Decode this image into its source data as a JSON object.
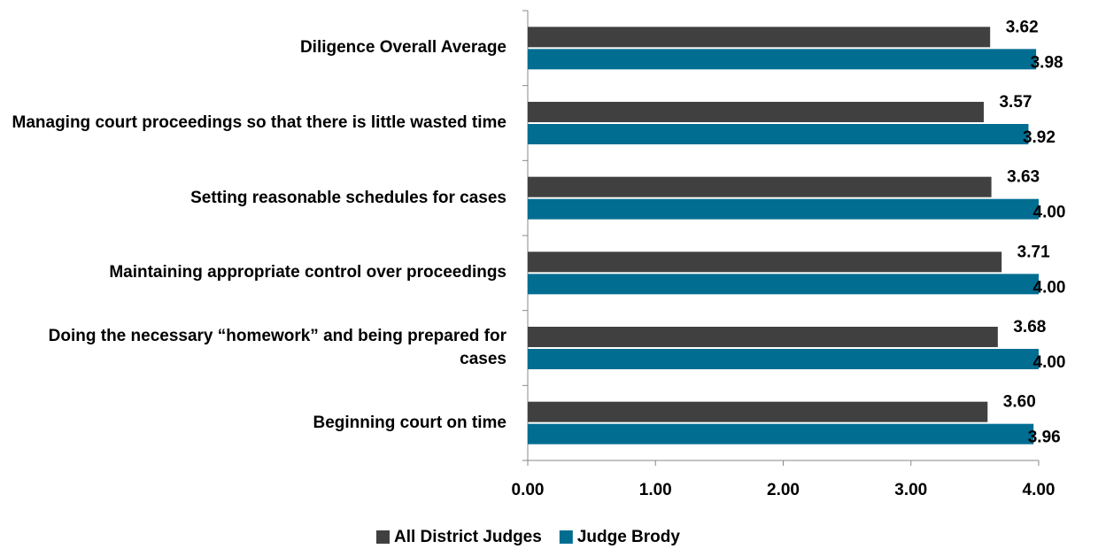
{
  "chart_data": {
    "type": "barh",
    "categories": [
      "Diligence Overall Average",
      "Managing court proceedings so that there is little wasted time",
      "Setting reasonable schedules for cases",
      "Maintaining appropriate control over proceedings",
      "Doing the necessary “homework” and being prepared for cases",
      "Beginning court on time"
    ],
    "series": [
      {
        "name": "All District Judges",
        "color": "#404040",
        "values": [
          3.62,
          3.57,
          3.63,
          3.71,
          3.68,
          3.6
        ],
        "value_labels": [
          "3.62",
          "3.57",
          "3.63",
          "3.71",
          "3.68",
          "3.60"
        ]
      },
      {
        "name": "Judge Brody",
        "color": "#006d91",
        "values": [
          3.98,
          3.92,
          4.0,
          4.0,
          4.0,
          3.96
        ],
        "value_labels": [
          "3.98",
          "3.92",
          "4.00",
          "4.00",
          "4.00",
          "3.96"
        ]
      }
    ],
    "xlim": [
      0,
      4
    ],
    "xticks": [
      {
        "value": 0,
        "label": "0.00"
      },
      {
        "value": 1,
        "label": "1.00"
      },
      {
        "value": 2,
        "label": "2.00"
      },
      {
        "value": 3,
        "label": "3.00"
      },
      {
        "value": 4,
        "label": "4.00"
      }
    ],
    "legend": "bottom"
  }
}
